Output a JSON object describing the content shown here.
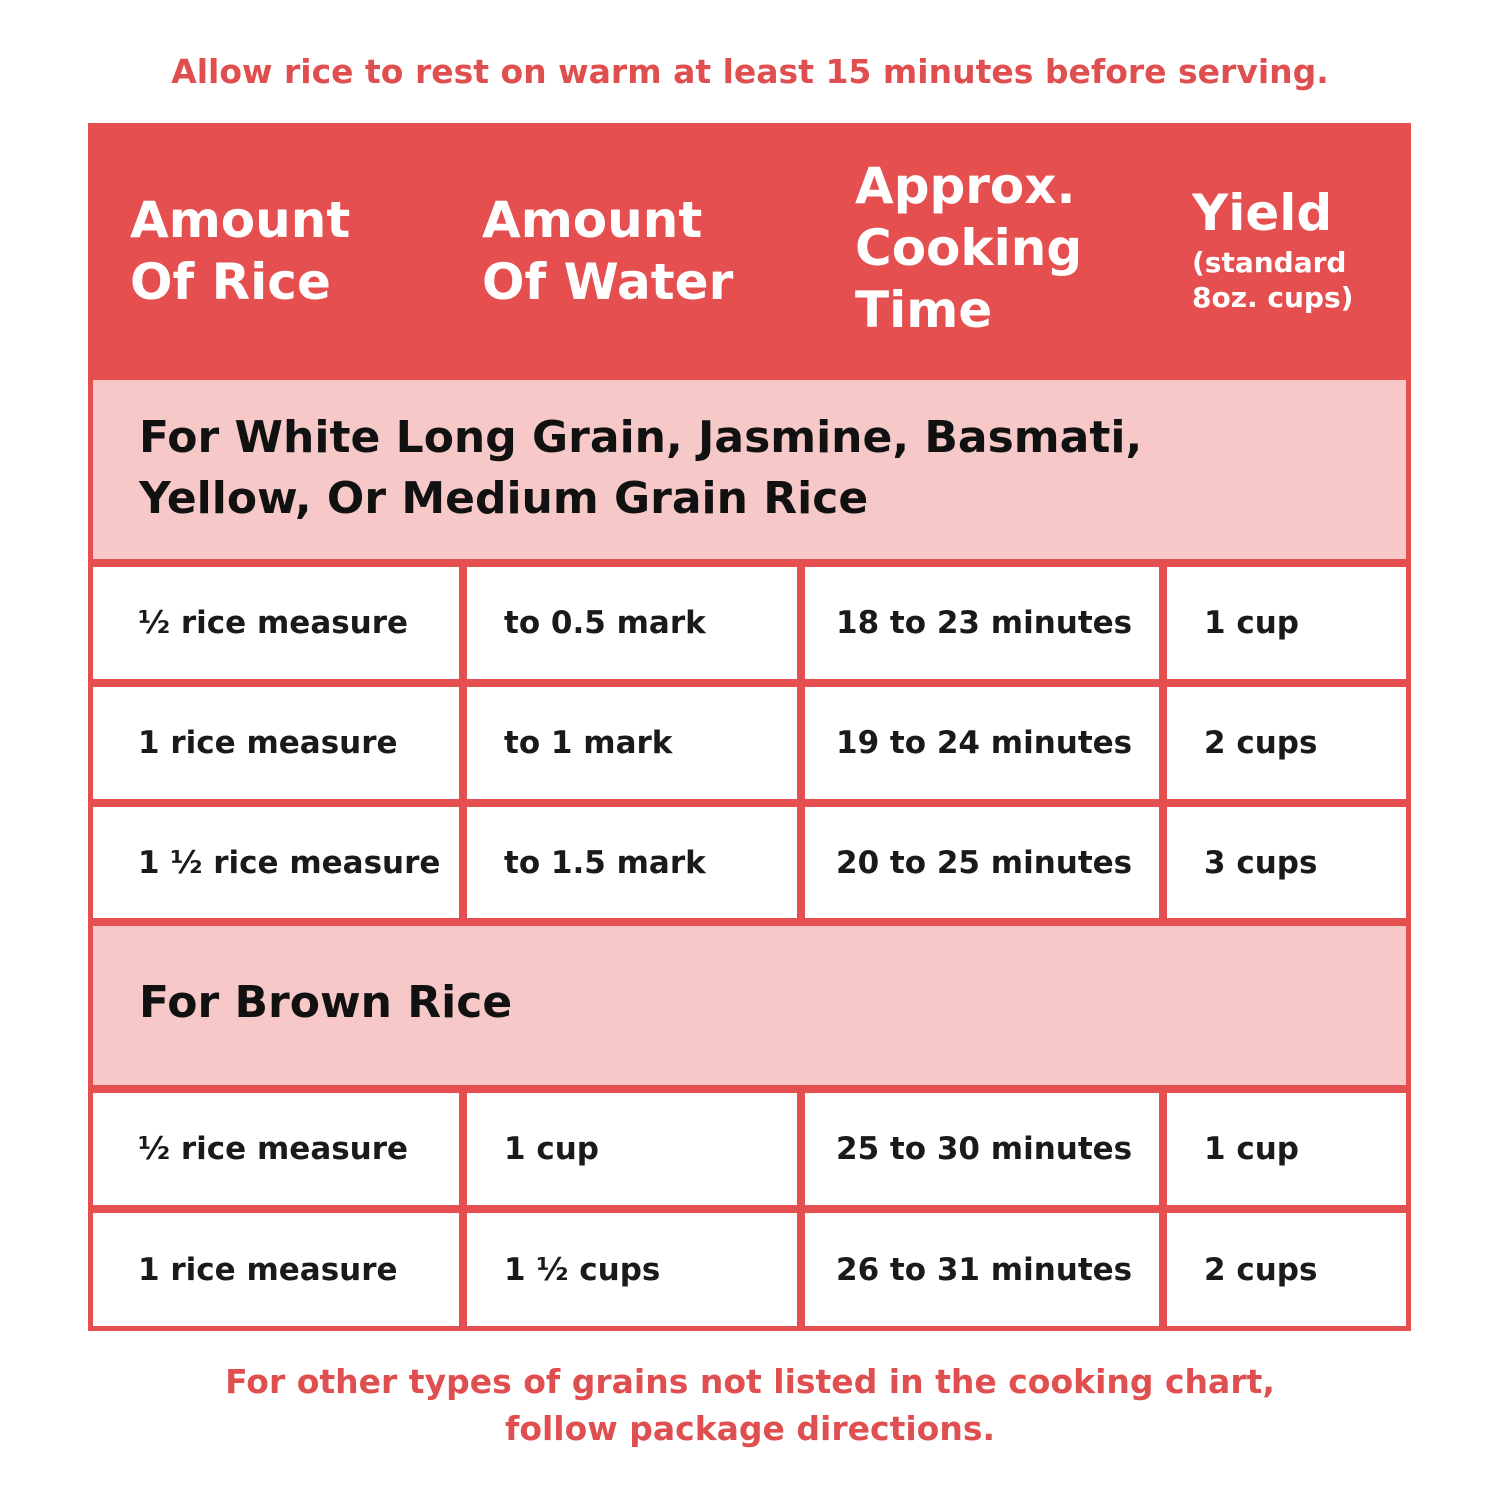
{
  "notes": {
    "top": "Allow rice to rest on warm at least 15 minutes before serving.",
    "bottom_line1": "For other types of grains not listed in the cooking chart,",
    "bottom_line2": "follow package directions."
  },
  "header": {
    "col1_line1": "Amount",
    "col1_line2": "Of Rice",
    "col2_line1": "Amount",
    "col2_line2": "Of Water",
    "col3_line1": "Approx.",
    "col3_line2": "Cooking",
    "col3_line3": "Time",
    "col4_line1": "Yield",
    "col4_line2": "(standard",
    "col4_line3": "8oz. cups)"
  },
  "sections": [
    {
      "title_line1": "For White Long Grain, Jasmine, Basmati,",
      "title_line2": "Yellow, Or Medium Grain Rice",
      "rows": [
        [
          "½ rice measure",
          "to 0.5 mark",
          "18 to 23 minutes",
          "1 cup"
        ],
        [
          "1 rice measure",
          "to 1 mark",
          "19 to 24 minutes",
          "2 cups"
        ],
        [
          "1 ½ rice measure",
          "to 1.5 mark",
          "20 to 25 minutes",
          "3 cups"
        ]
      ]
    },
    {
      "title_line1": "For Brown Rice",
      "rows": [
        [
          "½ rice measure",
          "1 cup",
          "25 to 30 minutes",
          "1 cup"
        ],
        [
          "1 rice measure",
          "1 ½ cups",
          "26 to 31 minutes",
          "2 cups"
        ]
      ]
    }
  ],
  "colors": {
    "brand_red": "#e64f4f",
    "note_red": "#e04f4f",
    "section_pink": "#f7c8c8",
    "cell_white": "#ffffff",
    "text_dark": "#111111"
  }
}
